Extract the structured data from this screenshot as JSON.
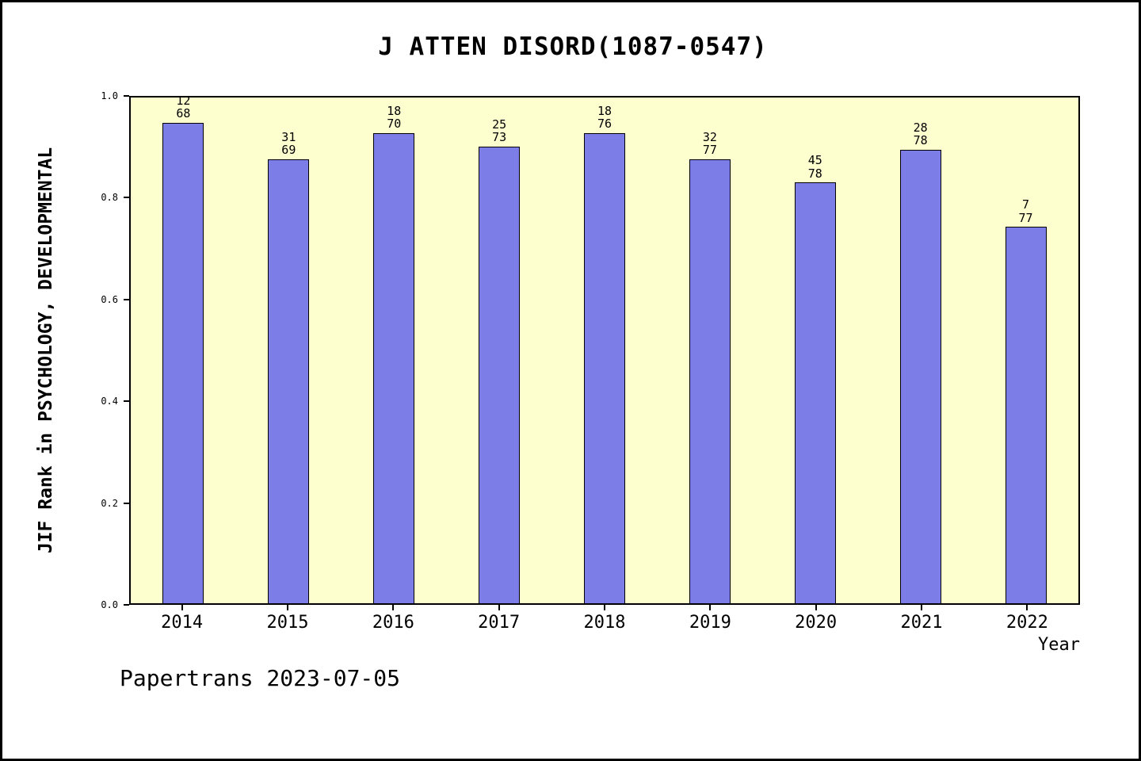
{
  "title": "J ATTEN DISORD(1087-0547)",
  "footer": "Papertrans 2023-07-05",
  "chart_data": {
    "type": "bar",
    "title": "J ATTEN DISORD(1087-0547)",
    "xlabel": "Year",
    "ylabel": "JIF Rank in PSYCHOLOGY, DEVELOPMENTAL",
    "ylim": [
      0.0,
      1.0
    ],
    "yticks": [
      "0.0",
      "0.2",
      "0.4",
      "0.6",
      "0.8",
      "1.0"
    ],
    "grid": false,
    "legend_position": "none",
    "categories": [
      "2014",
      "2015",
      "2016",
      "2017",
      "2018",
      "2019",
      "2020",
      "2021",
      "2022"
    ],
    "series": [
      {
        "name": "rank",
        "values": [
          12,
          31,
          18,
          25,
          18,
          32,
          45,
          28,
          7
        ]
      },
      {
        "name": "category_total",
        "values": [
          68,
          69,
          70,
          73,
          76,
          77,
          78,
          78,
          77
        ]
      }
    ],
    "bar_heights": [
      0.95,
      0.878,
      0.93,
      0.903,
      0.93,
      0.878,
      0.832,
      0.897,
      0.744
    ],
    "bar_color": "#7d7de8",
    "bar_edge_color": "#000000",
    "plot_bg": "#feffcf",
    "frame_color": "#000000"
  }
}
